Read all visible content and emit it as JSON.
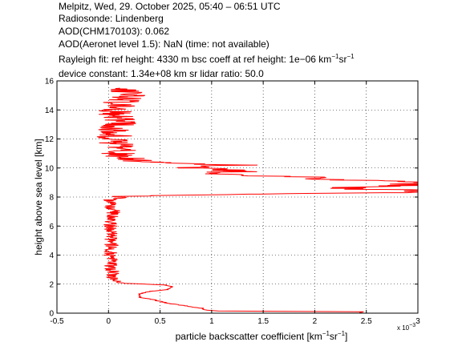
{
  "header": {
    "line1": "Melpitz, Wed, 29. October 2025, 05:40 – 06:51 UTC",
    "line2": "Radiosonde: Lindenberg",
    "line3": "AOD(CHM170103): 0.062",
    "line4": "AOD(Aeronet level 1.5): NaN   (time: not available)",
    "line5_a": "Rayleigh fit:     ref height: 4330 m     bsc coeff at ref height: 1e−06 km",
    "line5_sup1": "−1",
    "line5_b": "sr",
    "line5_sup2": "−1",
    "line6": "device constant: 1.34e+08 km sr     lidar ratio: 50.0"
  },
  "chart_data": {
    "type": "line",
    "xlabel_main": "particle backscatter coefficient [km",
    "xlabel_sup1": "−1",
    "xlabel_mid": "sr",
    "xlabel_sup2": "−1",
    "xlabel_end": "]",
    "ylabel": "height above sea level [km]",
    "x_scale_note": "x 10",
    "x_scale_exp": "−3",
    "xlim": [
      -0.5,
      3
    ],
    "ylim": [
      0,
      16
    ],
    "xticks": [
      -0.5,
      0,
      0.5,
      1,
      1.5,
      2,
      2.5,
      3
    ],
    "xtick_labels": [
      "-0.5",
      "0",
      "0.5",
      "1",
      "1.5",
      "2",
      "2.5",
      "3"
    ],
    "yticks": [
      0,
      2,
      4,
      6,
      8,
      10,
      12,
      14,
      16
    ],
    "ytick_labels": [
      "0",
      "2",
      "4",
      "6",
      "8",
      "10",
      "12",
      "14",
      "16"
    ],
    "grid": true,
    "series": [
      {
        "color": "#ff0000",
        "profile": [
          [
            2.45,
            0.05
          ],
          [
            2.45,
            0.1
          ],
          [
            1.05,
            0.15
          ],
          [
            0.95,
            0.2
          ],
          [
            0.9,
            0.35
          ],
          [
            0.75,
            0.5
          ],
          [
            0.6,
            0.65
          ],
          [
            0.5,
            0.8
          ],
          [
            0.42,
            0.95
          ],
          [
            0.3,
            1.1
          ],
          [
            0.3,
            1.3
          ],
          [
            0.4,
            1.5
          ],
          [
            0.58,
            1.62
          ],
          [
            0.62,
            1.8
          ],
          [
            0.55,
            1.95
          ],
          [
            0.35,
            2.0
          ],
          [
            0.15,
            2.05
          ],
          [
            0.08,
            2.2
          ],
          [
            0.05,
            2.5
          ],
          [
            0.03,
            3.0
          ],
          [
            0.02,
            4.0
          ],
          [
            0.03,
            5.0
          ],
          [
            0.02,
            6.0
          ],
          [
            0.05,
            7.0
          ],
          [
            0.02,
            7.8
          ],
          [
            0.3,
            8.1
          ],
          [
            1.5,
            8.2
          ],
          [
            2.8,
            8.3
          ],
          [
            3.0,
            8.45
          ],
          [
            2.2,
            8.6
          ],
          [
            2.9,
            8.8
          ],
          [
            3.0,
            9.0
          ],
          [
            2.2,
            9.2
          ],
          [
            1.8,
            9.4
          ],
          [
            1.0,
            9.6
          ],
          [
            1.3,
            9.8
          ],
          [
            0.8,
            10.0
          ],
          [
            1.2,
            10.2
          ],
          [
            0.5,
            10.4
          ],
          [
            0.2,
            10.6
          ],
          [
            0.1,
            11.0
          ],
          [
            0.05,
            12.0
          ],
          [
            0.1,
            13.0
          ],
          [
            0.05,
            14.0
          ],
          [
            0.2,
            15.0
          ],
          [
            0.1,
            15.5
          ]
        ]
      }
    ]
  }
}
